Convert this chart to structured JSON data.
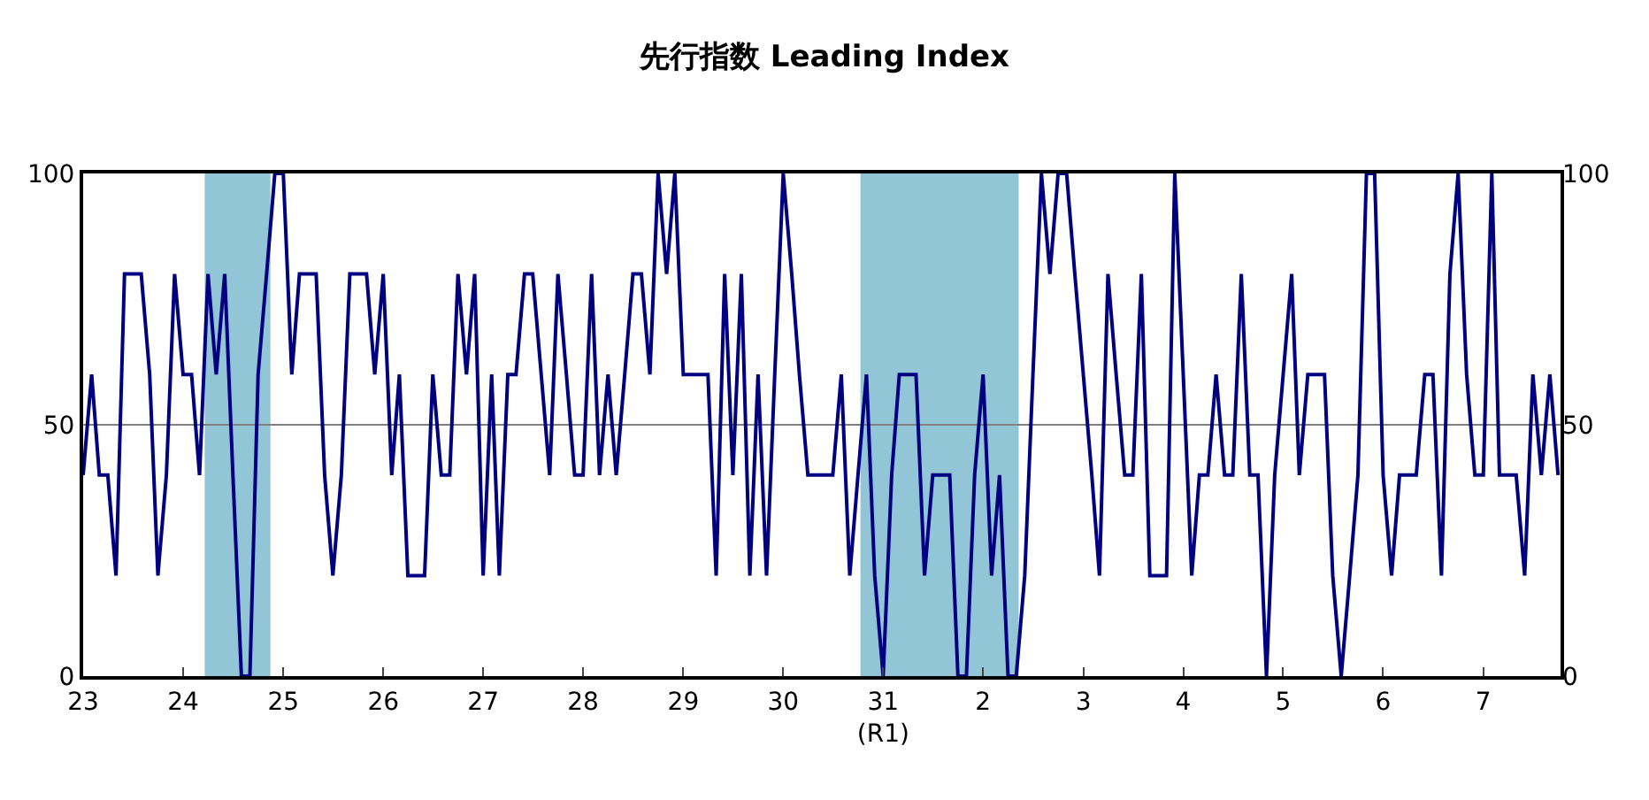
{
  "chart_data": {
    "type": "line",
    "title": "先行指数 Leading Index",
    "x": [
      "2011-01",
      "2011-02",
      "2011-03",
      "2011-04",
      "2011-05",
      "2011-06",
      "2011-07",
      "2011-08",
      "2011-09",
      "2011-10",
      "2011-11",
      "2011-12",
      "2012-01",
      "2012-02",
      "2012-03",
      "2012-04",
      "2012-05",
      "2012-06",
      "2012-07",
      "2012-08",
      "2012-09",
      "2012-10",
      "2012-11",
      "2012-12",
      "2013-01",
      "2013-02",
      "2013-03",
      "2013-04",
      "2013-05",
      "2013-06",
      "2013-07",
      "2013-08",
      "2013-09",
      "2013-10",
      "2013-11",
      "2013-12",
      "2014-01",
      "2014-02",
      "2014-03",
      "2014-04",
      "2014-05",
      "2014-06",
      "2014-07",
      "2014-08",
      "2014-09",
      "2014-10",
      "2014-11",
      "2014-12",
      "2015-01",
      "2015-02",
      "2015-03",
      "2015-04",
      "2015-05",
      "2015-06",
      "2015-07",
      "2015-08",
      "2015-09",
      "2015-10",
      "2015-11",
      "2015-12",
      "2016-01",
      "2016-02",
      "2016-03",
      "2016-04",
      "2016-05",
      "2016-06",
      "2016-07",
      "2016-08",
      "2016-09",
      "2016-10",
      "2016-11",
      "2016-12",
      "2017-01",
      "2017-02",
      "2017-03",
      "2017-04",
      "2017-05",
      "2017-06",
      "2017-07",
      "2017-08",
      "2017-09",
      "2017-10",
      "2017-11",
      "2017-12",
      "2018-01",
      "2018-02",
      "2018-03",
      "2018-04",
      "2018-05",
      "2018-06",
      "2018-07",
      "2018-08",
      "2018-09",
      "2018-10",
      "2018-11",
      "2018-12",
      "2019-01",
      "2019-02",
      "2019-03",
      "2019-04",
      "2019-05",
      "2019-06",
      "2019-07",
      "2019-08",
      "2019-09",
      "2019-10",
      "2019-11",
      "2019-12",
      "2020-01",
      "2020-02",
      "2020-03",
      "2020-04",
      "2020-05",
      "2020-06",
      "2020-07",
      "2020-08",
      "2020-09",
      "2020-10",
      "2020-11",
      "2020-12",
      "2021-01",
      "2021-02",
      "2021-03",
      "2021-04",
      "2021-05",
      "2021-06",
      "2021-07",
      "2021-08",
      "2021-09",
      "2021-10",
      "2021-11",
      "2021-12",
      "2022-01",
      "2022-02",
      "2022-03",
      "2022-04",
      "2022-05",
      "2022-06",
      "2022-07",
      "2022-08",
      "2022-09",
      "2022-10",
      "2022-11",
      "2022-12",
      "2023-01",
      "2023-02",
      "2023-03",
      "2023-04",
      "2023-05",
      "2023-06",
      "2023-07",
      "2023-08",
      "2023-09",
      "2023-10",
      "2023-11",
      "2023-12",
      "2024-01",
      "2024-02",
      "2024-03",
      "2024-04",
      "2024-05",
      "2024-06",
      "2024-07",
      "2024-08",
      "2024-09",
      "2024-10",
      "2024-11",
      "2024-12",
      "2025-01",
      "2025-02",
      "2025-03",
      "2025-04",
      "2025-05",
      "2025-06",
      "2025-07",
      "2025-08",
      "2025-09",
      "2025-10"
    ],
    "series": [
      {
        "color": "#000080",
        "values": [
          40,
          60,
          40,
          40,
          20,
          80,
          80,
          80,
          60,
          20,
          40,
          80,
          60,
          60,
          40,
          80,
          60,
          80,
          40,
          0,
          0,
          60,
          80,
          100,
          100,
          60,
          80,
          80,
          80,
          40,
          20,
          40,
          80,
          80,
          80,
          60,
          80,
          40,
          60,
          20,
          20,
          20,
          60,
          40,
          40,
          80,
          60,
          80,
          20,
          60,
          20,
          60,
          60,
          80,
          80,
          60,
          40,
          80,
          60,
          40,
          40,
          80,
          40,
          60,
          40,
          60,
          80,
          80,
          60,
          100,
          80,
          100,
          60,
          60,
          60,
          60,
          20,
          80,
          40,
          80,
          20,
          60,
          20,
          60,
          100,
          80,
          60,
          40,
          40,
          40,
          40,
          60,
          20,
          40,
          60,
          20,
          0,
          40,
          60,
          60,
          60,
          20,
          40,
          40,
          40,
          0,
          0,
          40,
          60,
          20,
          40,
          0,
          0,
          20,
          60,
          100,
          80,
          100,
          100,
          80,
          60,
          40,
          20,
          80,
          60,
          40,
          40,
          80,
          20,
          20,
          20,
          100,
          60,
          20,
          40,
          40,
          60,
          40,
          40,
          80,
          40,
          40,
          0,
          40,
          60,
          80,
          40,
          60,
          60,
          60,
          20,
          0,
          20,
          40,
          100,
          100,
          40,
          20,
          40,
          40,
          40,
          60,
          60,
          20,
          80,
          100,
          60,
          40,
          40,
          100,
          40,
          40,
          40,
          20,
          60,
          40,
          60,
          40
        ]
      }
    ],
    "xlim": [
      "2011-01-01",
      "2025-10-10"
    ],
    "xticks": [
      {
        "value": "2011-01",
        "label": "23"
      },
      {
        "value": "2012-01",
        "label": "24"
      },
      {
        "value": "2013-01",
        "label": "25"
      },
      {
        "value": "2014-01",
        "label": "26"
      },
      {
        "value": "2015-01",
        "label": "27"
      },
      {
        "value": "2016-01",
        "label": "28"
      },
      {
        "value": "2017-01",
        "label": "29"
      },
      {
        "value": "2018-01",
        "label": "30"
      },
      {
        "value": "2019-01",
        "label": "31\n(R1)"
      },
      {
        "value": "2020-01",
        "label": "2"
      },
      {
        "value": "2021-01",
        "label": "3"
      },
      {
        "value": "2022-01",
        "label": "4"
      },
      {
        "value": "2023-01",
        "label": "5"
      },
      {
        "value": "2024-01",
        "label": "6"
      },
      {
        "value": "2025-01",
        "label": "7"
      }
    ],
    "ylim": [
      0,
      100
    ],
    "yticks": [
      0,
      50,
      100
    ],
    "y2lim": [
      0,
      100
    ],
    "y2ticks": [
      0,
      50,
      100
    ],
    "grid": "y",
    "legend": false,
    "marker": "none",
    "line_style": "solid",
    "bands": [
      {
        "axis": "x",
        "from": "2012-03-20",
        "to": "2012-11-15",
        "color": "#92c5d6"
      },
      {
        "axis": "x",
        "from": "2018-10-10",
        "to": "2020-05-10",
        "color": "#92c5d6"
      }
    ]
  }
}
